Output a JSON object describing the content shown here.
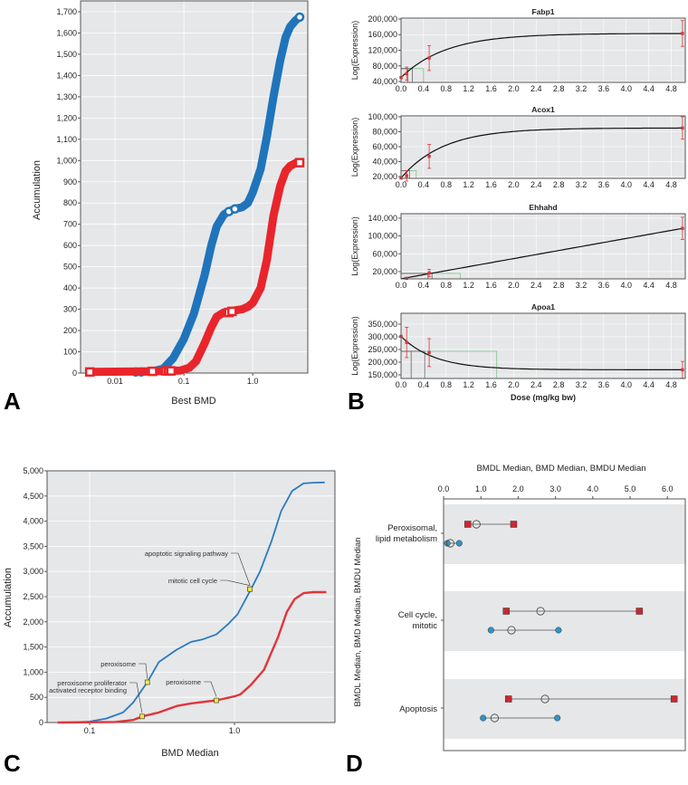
{
  "panel_labels": {
    "a": "A",
    "b": "B",
    "c": "C",
    "d": "D"
  },
  "chart_data": [
    {
      "panel": "A",
      "type": "line",
      "xlabel": "Best BMD",
      "ylabel": "Accumulation",
      "xscale": "log",
      "xlim": [
        0.00316,
        6.3
      ],
      "ylim": [
        0,
        1750
      ],
      "xticks": [
        0.01,
        0.1,
        1.0
      ],
      "xtick_labels": [
        "0.01",
        "0.1",
        "1.0"
      ],
      "yticks": [
        0,
        100,
        200,
        300,
        400,
        500,
        600,
        700,
        800,
        900,
        1000,
        1100,
        1200,
        1300,
        1400,
        1500,
        1600,
        1700
      ],
      "ytick_labels": [
        "0",
        "100",
        "200",
        "300",
        "400",
        "500",
        "600",
        "700",
        "800",
        "900",
        "1,000",
        "1,100",
        "1,200",
        "1,300",
        "1,400",
        "1,500",
        "1,600",
        "1,700"
      ],
      "grid": true,
      "series": [
        {
          "name": "blue",
          "color": "#1f74bb",
          "marker": "circle",
          "x": [
            0.02,
            0.035,
            0.05,
            0.07,
            0.1,
            0.14,
            0.2,
            0.25,
            0.3,
            0.38,
            0.45,
            0.55,
            0.7,
            0.85,
            1.0,
            1.3,
            1.6,
            2.0,
            2.5,
            3.0,
            3.5,
            4.2,
            4.8
          ],
          "y": [
            5,
            8,
            20,
            70,
            160,
            280,
            460,
            600,
            690,
            745,
            762,
            772,
            780,
            800,
            850,
            960,
            1110,
            1300,
            1470,
            1580,
            1630,
            1660,
            1675
          ],
          "markers_x": [
            0.02,
            0.024,
            0.45,
            0.55,
            4.8
          ],
          "markers_y": [
            5,
            5,
            760,
            772,
            1675
          ]
        },
        {
          "name": "red",
          "color": "#e8252b",
          "marker": "square",
          "x": [
            0.0043,
            0.035,
            0.06,
            0.09,
            0.12,
            0.15,
            0.2,
            0.25,
            0.3,
            0.38,
            0.45,
            0.55,
            0.7,
            0.85,
            1.0,
            1.3,
            1.6,
            2.0,
            2.5,
            3.0,
            3.5,
            4.2,
            4.8
          ],
          "y": [
            5,
            8,
            10,
            12,
            25,
            55,
            140,
            215,
            265,
            285,
            290,
            295,
            300,
            312,
            330,
            400,
            530,
            740,
            880,
            950,
            975,
            988,
            990
          ],
          "markers_x": [
            0.0043,
            0.035,
            0.055,
            0.06,
            0.065,
            0.45,
            0.5,
            4.8
          ],
          "markers_y": [
            5,
            8,
            10,
            10,
            10,
            285,
            290,
            990
          ]
        }
      ]
    },
    {
      "panel": "B",
      "type": "line",
      "xlabel": "Dose (mg/kg bw)",
      "xlim": [
        0,
        5.05
      ],
      "xticks": [
        0,
        0.4,
        0.8,
        1.2,
        1.6,
        2.0,
        2.4,
        2.8,
        3.2,
        3.6,
        4.0,
        4.4,
        4.8
      ],
      "xtick_labels": [
        "0.0",
        "0.4",
        "0.8",
        "1.2",
        "1.6",
        "2.0",
        "2.4",
        "2.8",
        "3.2",
        "3.6",
        "4.0",
        "4.4",
        "4.8"
      ],
      "subplots": [
        {
          "title": "Fabp1",
          "ylabel": "Log(Expression)",
          "ylim": [
            37700,
            202300
          ],
          "yticks": [
            40000,
            80000,
            120000,
            160000,
            200000
          ],
          "ytick_labels": [
            "40,000",
            "80,000",
            "120,000",
            "160,000",
            "200,000"
          ],
          "points": [
            {
              "dose": 0,
              "mean": 50000,
              "err": 0
            },
            {
              "dose": 0.1,
              "mean": 60000,
              "err": 17000
            },
            {
              "dose": 0.5,
              "mean": 100000,
              "err": 32000
            },
            {
              "dose": 5,
              "mean": 163000,
              "err": 33000
            }
          ],
          "fit": {
            "model": "exp-rise",
            "base": 50000,
            "amp": 113000,
            "scale": 0.8
          },
          "bmd_level": 73000,
          "bmdl_bmd": [
            0.12,
            0.2
          ],
          "bmdu": 0.4
        },
        {
          "title": "Acox1",
          "ylabel": "Log(Expression)",
          "ylim": [
            17600,
            101200
          ],
          "yticks": [
            20000,
            40000,
            60000,
            80000,
            100000
          ],
          "ytick_labels": [
            "20,000",
            "40,000",
            "60,000",
            "80,000",
            "100,000"
          ],
          "points": [
            {
              "dose": 0,
              "mean": 18000,
              "err": 0
            },
            {
              "dose": 0.1,
              "mean": 21000,
              "err": 7000
            },
            {
              "dose": 0.5,
              "mean": 47000,
              "err": 16000
            },
            {
              "dose": 5,
              "mean": 85000,
              "err": 15000
            }
          ],
          "fit": {
            "model": "exp-rise",
            "base": 18000,
            "amp": 67000,
            "scale": 0.75
          },
          "bmd_level": 28000,
          "bmdl_bmd": [
            0.1,
            0.15
          ],
          "bmdu": 0.27
        },
        {
          "title": "Ehhahd",
          "ylabel": "Log(Expression)",
          "ylim": [
            3700,
            150000
          ],
          "yticks": [
            20000,
            60000,
            100000,
            140000
          ],
          "ytick_labels": [
            "20,000",
            "60,000",
            "100,000",
            "140,000"
          ],
          "points": [
            {
              "dose": 0.1,
              "mean": 5000,
              "err": 0
            },
            {
              "dose": 0.5,
              "mean": 17000,
              "err": 8000
            },
            {
              "dose": 5,
              "mean": 117000,
              "err": 25000
            }
          ],
          "fit": {
            "model": "linear",
            "base": 4000,
            "slope": 22600
          },
          "bmd_level": 16000,
          "bmdl_bmd": [
            0.48,
            0.55
          ],
          "bmdu": 1.05
        },
        {
          "title": "Apoa1",
          "ylabel": "Log(Expression)",
          "ylim": [
            135700,
            392900
          ],
          "yticks": [
            150000,
            200000,
            250000,
            300000,
            350000
          ],
          "ytick_labels": [
            "150,000",
            "200,000",
            "250,000",
            "300,000",
            "350,000"
          ],
          "points": [
            {
              "dose": 0,
              "mean": 302000,
              "err": 0
            },
            {
              "dose": 0.1,
              "mean": 278000,
              "err": 60000
            },
            {
              "dose": 0.5,
              "mean": 238000,
              "err": 55000
            },
            {
              "dose": 5,
              "mean": 170000,
              "err": 33000
            }
          ],
          "fit": {
            "model": "exp-decay",
            "base": 170000,
            "amp": 132000,
            "scale": 0.6
          },
          "bmd_level": 243000,
          "bmdl_bmd": [
            0.18,
            0.42
          ],
          "bmdu": 1.7
        }
      ]
    },
    {
      "panel": "C",
      "type": "line",
      "xlabel": "BMD Median",
      "ylabel": "Accumulation",
      "xscale": "log",
      "xlim": [
        0.0508,
        4.94
      ],
      "ylim": [
        0,
        5000
      ],
      "xticks": [
        0.1,
        1.0
      ],
      "xtick_labels": [
        "0.1",
        "1.0"
      ],
      "yticks": [
        0,
        500,
        1000,
        1500,
        2000,
        2500,
        3000,
        3500,
        4000,
        4500,
        5000
      ],
      "ytick_labels": [
        "0",
        "500",
        "1,000",
        "1,500",
        "2,000",
        "2,500",
        "3,000",
        "3,500",
        "4,000",
        "4,500",
        "5,000"
      ],
      "series": [
        {
          "name": "blue",
          "color": "#2a7bc0",
          "x": [
            0.06,
            0.08,
            0.1,
            0.13,
            0.17,
            0.2,
            0.25,
            0.3,
            0.4,
            0.5,
            0.6,
            0.75,
            0.9,
            1.05,
            1.3,
            1.5,
            1.8,
            2.1,
            2.5,
            3.0,
            3.5,
            4.2
          ],
          "y": [
            0,
            5,
            20,
            80,
            200,
            400,
            800,
            1200,
            1450,
            1600,
            1650,
            1750,
            1950,
            2150,
            2650,
            3000,
            3600,
            4200,
            4600,
            4750,
            4765,
            4770
          ]
        },
        {
          "name": "red",
          "color": "#e0353a",
          "x": [
            0.06,
            0.15,
            0.2,
            0.23,
            0.3,
            0.4,
            0.5,
            0.75,
            1.0,
            1.1,
            1.3,
            1.6,
            2.0,
            2.3,
            2.6,
            3.0,
            3.5,
            4.3
          ],
          "y": [
            0,
            10,
            50,
            120,
            200,
            330,
            380,
            440,
            520,
            560,
            750,
            1050,
            1700,
            2200,
            2450,
            2570,
            2590,
            2590
          ]
        }
      ],
      "annotations": [
        {
          "text": [
            "apoptotic signaling pathway"
          ],
          "x": 1.28,
          "y": 2650
        },
        {
          "text": [
            "mitotic cell cycle"
          ],
          "x": 1.28,
          "y": 2650
        },
        {
          "text": [
            "peroxisome"
          ],
          "x": 0.25,
          "y": 800
        },
        {
          "text": [
            "peroxisome proliferator",
            "activated receptor binding"
          ],
          "x": 0.23,
          "y": 120
        },
        {
          "text": [
            "peroxisome"
          ],
          "x": 0.75,
          "y": 440
        }
      ]
    },
    {
      "panel": "D",
      "type": "dot-range",
      "xlabel": "BMDL Median, BMD Median, BMDU Median",
      "ylabel": "BMDL Median, BMD Median, BMDU Median",
      "xlim": [
        0,
        6.48
      ],
      "xticks": [
        0,
        1,
        2,
        3,
        4,
        5,
        6
      ],
      "xtick_labels": [
        "0.0",
        "1.0",
        "2.0",
        "3.0",
        "4.0",
        "5.0",
        "6.0"
      ],
      "categories": [
        {
          "label": [
            "Peroxisomal,",
            "lipid metabolism"
          ],
          "red": {
            "bmdl": 0.65,
            "bmd": 0.88,
            "bmdu": 1.88
          },
          "blue": {
            "bmdl": 0.1,
            "bmd": 0.18,
            "bmdu": 0.42
          }
        },
        {
          "label": [
            "Cell cycle,",
            "mitotic"
          ],
          "red": {
            "bmdl": 1.68,
            "bmd": 2.6,
            "bmdu": 5.25
          },
          "blue": {
            "bmdl": 1.27,
            "bmd": 1.82,
            "bmdu": 3.08
          }
        },
        {
          "label": [
            "Apoptosis"
          ],
          "red": {
            "bmdl": 1.74,
            "bmd": 2.72,
            "bmdu": 6.18
          },
          "blue": {
            "bmdl": 1.06,
            "bmd": 1.37,
            "bmdu": 3.05
          }
        }
      ],
      "colors": {
        "red": "#c8282e",
        "blue": "#2f94c5",
        "band": "#e6e7e9"
      }
    }
  ],
  "colors": {
    "plot_bg": "#e6e7e9",
    "grid": "#ffffff",
    "axis": "#555555",
    "bmd_box": "#666666",
    "bmdu_box": "#7cc48a",
    "error_bar": "#e0353a"
  }
}
